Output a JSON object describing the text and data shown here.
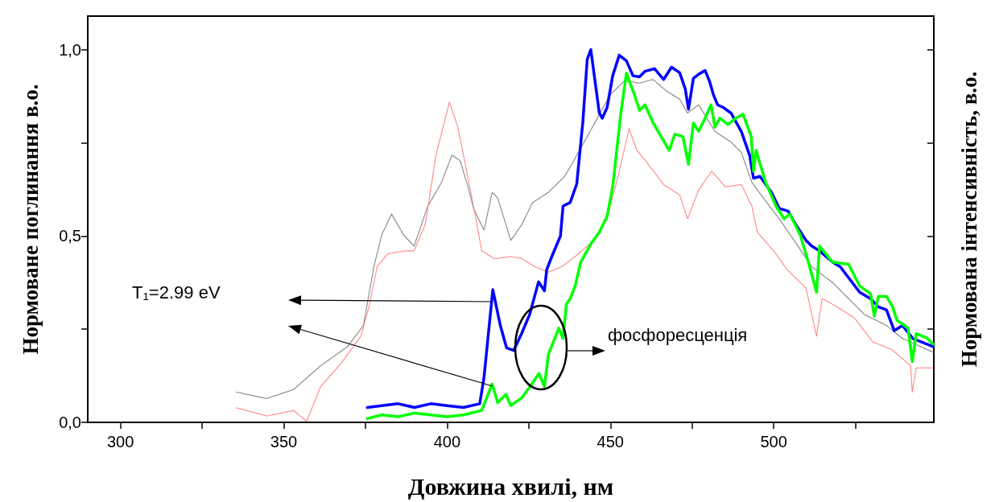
{
  "chart_data": {
    "type": "line",
    "xlabel": "Довжина хвилі, нм",
    "ylabel": "Нормоване поглинання в.о.",
    "y2label": "Нормована інтенсивність, в.о.",
    "xlim": [
      290,
      549
    ],
    "xticks": [
      300,
      {
        "value": 325,
        "label": null
      },
      350,
      {
        "value": 375,
        "label": null
      },
      400,
      {
        "value": 425,
        "label": null
      },
      450,
      {
        "value": 475,
        "label": null
      },
      500,
      {
        "value": 525,
        "label": null
      }
    ],
    "ylim": [
      0,
      1.09
    ],
    "yticks": [
      {
        "value": 0,
        "label": "0,0"
      },
      {
        "value": 0.25,
        "label": null
      },
      {
        "value": 0.5,
        "label": "0,5"
      },
      {
        "value": 0.75,
        "label": null
      },
      {
        "value": 1,
        "label": "1,0"
      }
    ],
    "marker": "none",
    "grid": false,
    "annotations": [
      "T₁=2.99 eV",
      "фосфоресценція"
    ],
    "series": [
      {
        "color": "#808080",
        "line_style": "dotted",
        "x": [
          335.5,
          344.8,
          353,
          361.3,
          369.5,
          374.4,
          376.1,
          377.6,
          380,
          383,
          386.7,
          389.9,
          394.1,
          398.3,
          401.5,
          404,
          406.4,
          408.1,
          411.3,
          413.8,
          415.5,
          418,
          419.5,
          422.9,
          426.1,
          431,
          436,
          438.4,
          445,
          450,
          454.4,
          458.9,
          463,
          467.2,
          471.2,
          473.6,
          477,
          482,
          486.9,
          490.1,
          493.3,
          496.8,
          501.7,
          506.7,
          511.6,
          518,
          522.9,
          527.8,
          534.5,
          539.4,
          548.8
        ],
        "values": [
          0.081,
          0.064,
          0.088,
          0.152,
          0.203,
          0.26,
          0.345,
          0.418,
          0.503,
          0.559,
          0.503,
          0.473,
          0.58,
          0.644,
          0.717,
          0.702,
          0.632,
          0.574,
          0.516,
          0.617,
          0.602,
          0.531,
          0.488,
          0.531,
          0.589,
          0.617,
          0.66,
          0.696,
          0.8,
          0.88,
          0.917,
          0.91,
          0.92,
          0.889,
          0.867,
          0.83,
          0.852,
          0.781,
          0.752,
          0.724,
          0.644,
          0.602,
          0.546,
          0.482,
          0.418,
          0.375,
          0.332,
          0.289,
          0.26,
          0.225,
          0.188
        ]
      },
      {
        "color": "#ff8080",
        "line_style": "dotted",
        "x": [
          335.5,
          344.8,
          353,
          357,
          361.3,
          367.7,
          373.6,
          376.1,
          378.6,
          381.8,
          386.7,
          389.9,
          393.3,
          396.6,
          400.7,
          403.2,
          405.7,
          408.1,
          410.6,
          414.5,
          419.5,
          422.9,
          426.8,
          431,
          435.2,
          439.2,
          444.1,
          449,
          452.5,
          455.7,
          458.1,
          461.3,
          466.3,
          471.2,
          473.6,
          477,
          481,
          485.2,
          490.1,
          493.3,
          495,
          500,
          504.2,
          509.9,
          513.1,
          514.8,
          518,
          524.6,
          530.3,
          536.2,
          541.9,
          542.4,
          543.6,
          548.8
        ],
        "values": [
          0.039,
          0.017,
          0.032,
          0.003,
          0.096,
          0.16,
          0.231,
          0.31,
          0.418,
          0.452,
          0.46,
          0.46,
          0.531,
          0.717,
          0.859,
          0.795,
          0.687,
          0.58,
          0.46,
          0.439,
          0.445,
          0.439,
          0.418,
          0.403,
          0.418,
          0.445,
          0.482,
          0.546,
          0.666,
          0.788,
          0.73,
          0.696,
          0.638,
          0.61,
          0.546,
          0.623,
          0.674,
          0.632,
          0.638,
          0.58,
          0.51,
          0.46,
          0.409,
          0.36,
          0.231,
          0.332,
          0.317,
          0.281,
          0.216,
          0.195,
          0.152,
          0.081,
          0.146,
          0.146
        ]
      },
      {
        "color": "#0000ff",
        "line_style": "solid",
        "x": [
          375.6,
          380,
          385,
          390,
          395,
          400,
          405,
          410,
          411.3,
          414,
          416.3,
          418.2,
          420.4,
          422.8,
          425.3,
          428,
          429.8,
          430.5,
          432.3,
          434.7,
          435.5,
          437.7,
          439.7,
          441.6,
          442.9,
          444,
          446.6,
          447.5,
          449,
          450.7,
          452.7,
          454.9,
          456.9,
          458.9,
          460.6,
          463.5,
          466.3,
          468.7,
          471.2,
          472.9,
          473.9,
          475.4,
          477,
          479,
          480.3,
          481.5,
          482.8,
          484.5,
          486.9,
          490.1,
          492.6,
          493.8,
          495.8,
          499.3,
          501.7,
          504.4,
          506.7,
          509.9,
          511.6,
          514,
          518,
          520.4,
          522.2,
          526.3,
          529.6,
          532,
          534.5,
          536.9,
          539.4,
          542.6,
          548.8
        ],
        "values": [
          0.04,
          0.045,
          0.05,
          0.04,
          0.05,
          0.045,
          0.04,
          0.05,
          0.12,
          0.356,
          0.26,
          0.2,
          0.193,
          0.238,
          0.29,
          0.377,
          0.353,
          0.41,
          0.45,
          0.5,
          0.58,
          0.59,
          0.64,
          0.81,
          0.974,
          1.0,
          0.83,
          0.816,
          0.845,
          0.93,
          0.985,
          0.97,
          0.93,
          0.927,
          0.942,
          0.949,
          0.92,
          0.953,
          0.938,
          0.895,
          0.84,
          0.923,
          0.934,
          0.944,
          0.916,
          0.88,
          0.852,
          0.845,
          0.83,
          0.78,
          0.717,
          0.655,
          0.66,
          0.617,
          0.574,
          0.567,
          0.531,
          0.488,
          0.473,
          0.46,
          0.43,
          0.417,
          0.396,
          0.349,
          0.332,
          0.31,
          0.302,
          0.246,
          0.26,
          0.225,
          0.203
        ]
      },
      {
        "color": "#00ff00",
        "line_style": "solid",
        "x": [
          375.6,
          380,
          385,
          390,
          395,
          400,
          405,
          410.6,
          413.8,
          415.5,
          418,
          419.5,
          422.9,
          425.4,
          428.1,
          429.8,
          431,
          434.2,
          435.5,
          436.5,
          437.7,
          439.2,
          440.9,
          444.1,
          446.6,
          449,
          450.7,
          453.2,
          454.9,
          457.4,
          458.9,
          460.6,
          463.1,
          465.5,
          468,
          469.7,
          472.2,
          473.9,
          475.4,
          477,
          478.6,
          480.8,
          482,
          483.5,
          486,
          488.4,
          490.6,
          493.1,
          493.8,
          494.6,
          497.5,
          500.7,
          503.2,
          504.9,
          508.1,
          510.6,
          513.1,
          514,
          518,
          522.9,
          526.3,
          529.6,
          530.8,
          532,
          534.5,
          536.4,
          537.7,
          541.1,
          542.4,
          543.6,
          546.8,
          548.8
        ],
        "values": [
          0.01,
          0.02,
          0.015,
          0.025,
          0.02,
          0.015,
          0.02,
          0.032,
          0.103,
          0.053,
          0.075,
          0.045,
          0.066,
          0.096,
          0.131,
          0.096,
          0.182,
          0.253,
          0.225,
          0.317,
          0.332,
          0.366,
          0.43,
          0.48,
          0.51,
          0.553,
          0.632,
          0.83,
          0.937,
          0.878,
          0.837,
          0.852,
          0.803,
          0.767,
          0.73,
          0.773,
          0.767,
          0.692,
          0.803,
          0.781,
          0.809,
          0.852,
          0.792,
          0.816,
          0.799,
          0.816,
          0.827,
          0.767,
          0.674,
          0.73,
          0.644,
          0.58,
          0.546,
          0.559,
          0.503,
          0.43,
          0.349,
          0.473,
          0.43,
          0.424,
          0.366,
          0.345,
          0.285,
          0.338,
          0.338,
          0.31,
          0.274,
          0.253,
          0.163,
          0.238,
          0.227,
          0.21
        ]
      }
    ]
  }
}
